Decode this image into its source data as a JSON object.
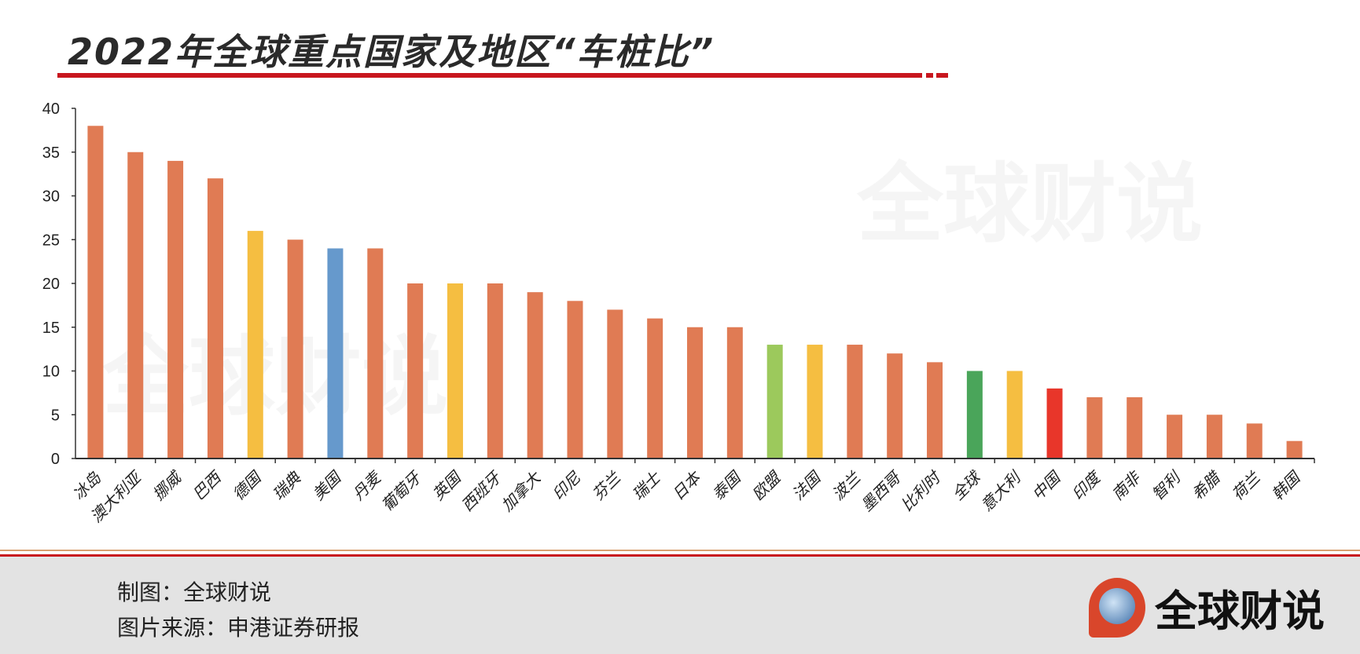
{
  "header": {
    "title": "2022年全球重点国家及地区“车桩比”"
  },
  "watermark": {
    "text": "全球财说"
  },
  "footer": {
    "credit_line": "制图：全球财说",
    "source_line": "图片来源：申港证券研报",
    "logo_text": "全球财说"
  },
  "colors": {
    "default": "#E07B54",
    "yellow": "#F5BE41",
    "blue": "#6699CC",
    "lightgreen": "#9CC95C",
    "green": "#4AA55A",
    "red": "#E8362A"
  },
  "chart_data": {
    "type": "bar",
    "title": "2022年全球重点国家及地区“车桩比”",
    "xlabel": "",
    "ylabel": "",
    "ylim": [
      0,
      40
    ],
    "yticks": [
      "0",
      "5",
      "10",
      "15",
      "20",
      "25",
      "30",
      "35",
      "40"
    ],
    "grid": false,
    "categories": [
      "冰岛",
      "澳大利亚",
      "挪威",
      "巴西",
      "德国",
      "瑞典",
      "美国",
      "丹麦",
      "葡萄牙",
      "英国",
      "西班牙",
      "加拿大",
      "印尼",
      "芬兰",
      "瑞士",
      "日本",
      "泰国",
      "欧盟",
      "法国",
      "波兰",
      "墨西哥",
      "比利时",
      "全球",
      "意大利",
      "中国",
      "印度",
      "南非",
      "智利",
      "希腊",
      "荷兰",
      "韩国"
    ],
    "values": [
      38,
      35,
      34,
      32,
      26,
      25,
      24,
      24,
      20,
      20,
      20,
      19,
      18,
      17,
      16,
      15,
      15,
      13,
      13,
      13,
      12,
      11,
      10,
      10,
      8,
      7,
      7,
      5,
      5,
      4,
      2
    ],
    "bar_colors": [
      "default",
      "default",
      "default",
      "default",
      "yellow",
      "default",
      "blue",
      "default",
      "default",
      "yellow",
      "default",
      "default",
      "default",
      "default",
      "default",
      "default",
      "default",
      "lightgreen",
      "yellow",
      "default",
      "default",
      "default",
      "green",
      "yellow",
      "red",
      "default",
      "default",
      "default",
      "default",
      "default",
      "default"
    ]
  }
}
